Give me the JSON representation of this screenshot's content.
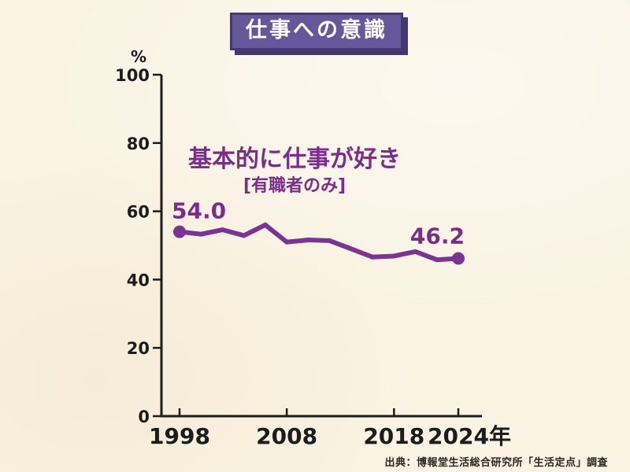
{
  "page": {
    "background_color": "#faf3e3"
  },
  "banner": {
    "title": "仕事への意識",
    "fill_color": "#65589a",
    "edge_color": "#44386f",
    "text_color": "#ffffff"
  },
  "source": {
    "text": "出典：博報堂生活総合研究所「生活定点」調査"
  },
  "chart_data": {
    "type": "line",
    "annotation_title": "基本的に仕事が好き",
    "annotation_subtitle": "[有職者のみ]",
    "unit_label": "%",
    "x": [
      1998,
      2000,
      2002,
      2004,
      2006,
      2008,
      2010,
      2012,
      2014,
      2016,
      2018,
      2020,
      2022,
      2024
    ],
    "values": [
      54.0,
      53.3,
      54.6,
      52.9,
      56.0,
      51.0,
      51.6,
      51.4,
      49.0,
      46.6,
      46.9,
      48.2,
      45.8,
      46.2
    ],
    "point_labels": {
      "first": "54.0",
      "last": "46.2"
    },
    "ylim": [
      0,
      100
    ],
    "y_ticks": [
      0,
      20,
      40,
      60,
      80,
      100
    ],
    "x_tick_labels": [
      {
        "year": 1998,
        "label": "1998"
      },
      {
        "year": 2008,
        "label": "2008"
      },
      {
        "year": 2018,
        "label": "2018"
      },
      {
        "year": 2024,
        "label": "2024年"
      }
    ],
    "grid": "off",
    "legend": "none",
    "line_color": "#7a3592",
    "label_color": "#7b2d8b",
    "axis_color": "#1c1c1c"
  }
}
